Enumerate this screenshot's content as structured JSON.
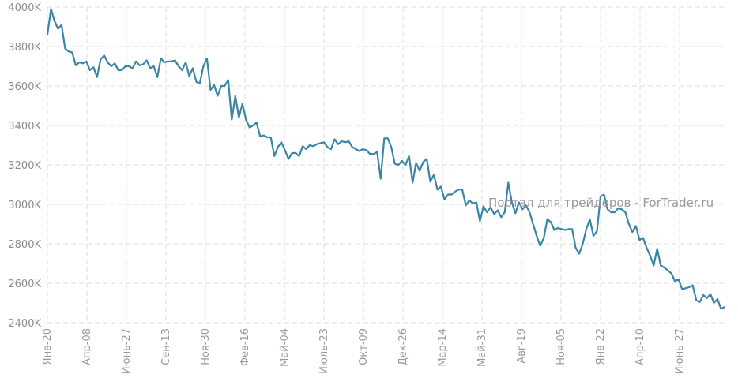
{
  "chart_data": {
    "type": "line",
    "title": "",
    "xlabel": "",
    "ylabel": "",
    "ylim": [
      2400000,
      4000000
    ],
    "grid": true,
    "y_ticks": [
      "2400K",
      "2600K",
      "2800K",
      "3000K",
      "3200K",
      "3400K",
      "3600K",
      "3800K",
      "4000K"
    ],
    "x_tick_labels": [
      "Янв-20",
      "Апр-08",
      "Июнь-27",
      "Сен-13",
      "Ноя-30",
      "Фев-16",
      "Май-04",
      "Июль-23",
      "Окт-09",
      "Дек-26",
      "Мар-14",
      "Май-31",
      "Авг-19",
      "Ноя-05",
      "Янв-22",
      "Апр-10",
      "Июнь-27"
    ],
    "series": [
      {
        "color": "#3a86a4",
        "values": [
          3860000,
          3990000,
          3930000,
          3890000,
          3910000,
          3790000,
          3775000,
          3770000,
          3705000,
          3720000,
          3715000,
          3725000,
          3680000,
          3695000,
          3645000,
          3735000,
          3755000,
          3720000,
          3700000,
          3715000,
          3680000,
          3680000,
          3700000,
          3700000,
          3690000,
          3725000,
          3705000,
          3710000,
          3730000,
          3690000,
          3700000,
          3645000,
          3740000,
          3720000,
          3725000,
          3725000,
          3730000,
          3700000,
          3680000,
          3720000,
          3650000,
          3690000,
          3620000,
          3615000,
          3700000,
          3740000,
          3580000,
          3605000,
          3550000,
          3600000,
          3600000,
          3630000,
          3430000,
          3550000,
          3440000,
          3510000,
          3430000,
          3390000,
          3400000,
          3415000,
          3345000,
          3350000,
          3340000,
          3340000,
          3245000,
          3290000,
          3315000,
          3275000,
          3230000,
          3260000,
          3260000,
          3245000,
          3295000,
          3280000,
          3300000,
          3295000,
          3305000,
          3310000,
          3315000,
          3290000,
          3280000,
          3330000,
          3305000,
          3320000,
          3315000,
          3320000,
          3290000,
          3280000,
          3270000,
          3280000,
          3275000,
          3255000,
          3255000,
          3265000,
          3130000,
          3335000,
          3335000,
          3290000,
          3205000,
          3200000,
          3220000,
          3200000,
          3245000,
          3110000,
          3210000,
          3170000,
          3215000,
          3230000,
          3115000,
          3150000,
          3075000,
          3090000,
          3025000,
          3050000,
          3050000,
          3065000,
          3075000,
          3075000,
          2995000,
          3020000,
          3005000,
          3010000,
          2915000,
          2990000,
          2960000,
          2985000,
          2950000,
          2970000,
          2935000,
          2960000,
          3110000,
          3010000,
          2955000,
          3010000,
          2975000,
          2995000,
          2960000,
          2900000,
          2840000,
          2790000,
          2830000,
          2925000,
          2910000,
          2870000,
          2880000,
          2875000,
          2870000,
          2875000,
          2875000,
          2780000,
          2750000,
          2800000,
          2875000,
          2925000,
          2840000,
          2865000,
          3040000,
          3050000,
          2975000,
          2960000,
          2960000,
          2980000,
          2975000,
          2960000,
          2900000,
          2860000,
          2890000,
          2820000,
          2830000,
          2780000,
          2740000,
          2690000,
          2775000,
          2690000,
          2680000,
          2665000,
          2650000,
          2610000,
          2620000,
          2570000,
          2575000,
          2580000,
          2590000,
          2515000,
          2505000,
          2540000,
          2525000,
          2545000,
          2500000,
          2520000,
          2470000,
          2480000
        ]
      }
    ]
  },
  "watermark": "Портал для трейдеров - ForTrader.ru"
}
